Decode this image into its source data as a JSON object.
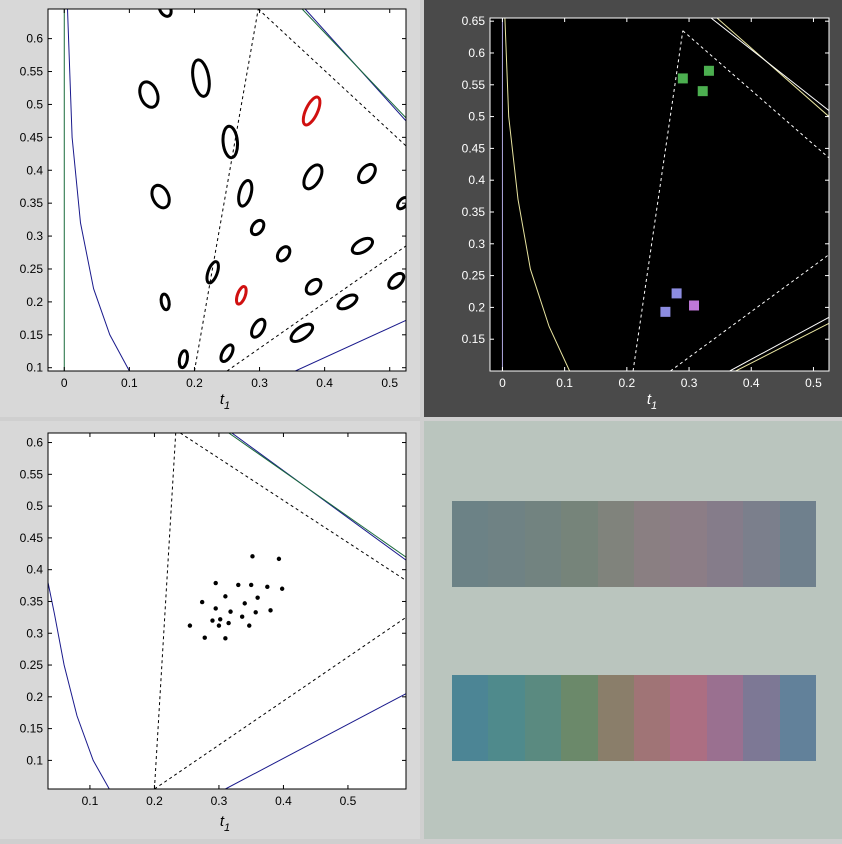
{
  "chart_data": [
    {
      "type": "scatter",
      "panel": "top-left",
      "xlabel": "t",
      "xlabel_sub": "1",
      "xlim": [
        -0.025,
        0.525
      ],
      "ylim": [
        0.095,
        0.645
      ],
      "xticks": [
        0,
        0.1,
        0.2,
        0.3,
        0.4,
        0.5
      ],
      "xtick_labels": [
        "0",
        "0.1",
        "0.2",
        "0.3",
        "0.4",
        "0.5"
      ],
      "yticks": [
        0.1,
        0.15,
        0.2,
        0.25,
        0.3,
        0.35,
        0.4,
        0.45,
        0.5,
        0.55,
        0.6
      ],
      "ytick_labels": [
        "0.1",
        "0.15",
        "0.2",
        "0.25",
        "0.3",
        "0.35",
        "0.4",
        "0.45",
        "0.5",
        "0.55",
        "0.6"
      ],
      "background": "#ffffff",
      "axis_color": "#000000",
      "curve_color": "#1a1a8c",
      "green_line_color": "#1a6b3c",
      "ellipse_color": "#000000",
      "highlight_color": "#d01010",
      "ellipses": [
        {
          "x": 0.155,
          "y": 0.645,
          "rx": 0.008,
          "ry": 0.012,
          "rot": -30
        },
        {
          "x": 0.13,
          "y": 0.515,
          "rx": 0.013,
          "ry": 0.02,
          "rot": -20
        },
        {
          "x": 0.21,
          "y": 0.54,
          "rx": 0.012,
          "ry": 0.028,
          "rot": -10
        },
        {
          "x": 0.38,
          "y": 0.49,
          "rx": 0.009,
          "ry": 0.023,
          "rot": 25,
          "highlight": true
        },
        {
          "x": 0.255,
          "y": 0.443,
          "rx": 0.011,
          "ry": 0.024,
          "rot": -5
        },
        {
          "x": 0.148,
          "y": 0.36,
          "rx": 0.012,
          "ry": 0.018,
          "rot": -25
        },
        {
          "x": 0.278,
          "y": 0.365,
          "rx": 0.009,
          "ry": 0.02,
          "rot": 15
        },
        {
          "x": 0.382,
          "y": 0.39,
          "rx": 0.011,
          "ry": 0.02,
          "rot": 30
        },
        {
          "x": 0.465,
          "y": 0.395,
          "rx": 0.01,
          "ry": 0.016,
          "rot": 40
        },
        {
          "x": 0.52,
          "y": 0.35,
          "rx": 0.006,
          "ry": 0.01,
          "rot": 40
        },
        {
          "x": 0.297,
          "y": 0.313,
          "rx": 0.008,
          "ry": 0.012,
          "rot": 35
        },
        {
          "x": 0.337,
          "y": 0.273,
          "rx": 0.008,
          "ry": 0.012,
          "rot": 35
        },
        {
          "x": 0.458,
          "y": 0.285,
          "rx": 0.009,
          "ry": 0.017,
          "rot": 60
        },
        {
          "x": 0.228,
          "y": 0.245,
          "rx": 0.007,
          "ry": 0.017,
          "rot": 20
        },
        {
          "x": 0.272,
          "y": 0.21,
          "rx": 0.006,
          "ry": 0.014,
          "rot": 20,
          "highlight": true
        },
        {
          "x": 0.383,
          "y": 0.223,
          "rx": 0.009,
          "ry": 0.013,
          "rot": 45
        },
        {
          "x": 0.51,
          "y": 0.232,
          "rx": 0.008,
          "ry": 0.014,
          "rot": 45
        },
        {
          "x": 0.155,
          "y": 0.2,
          "rx": 0.006,
          "ry": 0.012,
          "rot": -10
        },
        {
          "x": 0.435,
          "y": 0.2,
          "rx": 0.008,
          "ry": 0.016,
          "rot": 60
        },
        {
          "x": 0.298,
          "y": 0.16,
          "rx": 0.008,
          "ry": 0.015,
          "rot": 30
        },
        {
          "x": 0.365,
          "y": 0.153,
          "rx": 0.009,
          "ry": 0.019,
          "rot": 55
        },
        {
          "x": 0.183,
          "y": 0.113,
          "rx": 0.006,
          "ry": 0.013,
          "rot": 10
        },
        {
          "x": 0.25,
          "y": 0.122,
          "rx": 0.007,
          "ry": 0.014,
          "rot": 30
        }
      ],
      "curve": [
        [
          0.1,
          0.095
        ],
        [
          0.07,
          0.15
        ],
        [
          0.045,
          0.22
        ],
        [
          0.025,
          0.32
        ],
        [
          0.012,
          0.45
        ],
        [
          0.005,
          0.645
        ]
      ],
      "vertical_line_x": 0,
      "triangle": [
        [
          0.2,
          0.095
        ],
        [
          0.298,
          0.64
        ],
        [
          0.525,
          0.437
        ],
        [
          0.525,
          0.285
        ],
        [
          0.22,
          0.095
        ]
      ],
      "dashed_lines": [
        [
          [
            0.2,
            0.095
          ],
          [
            0.298,
            0.645
          ]
        ],
        [
          [
            0.298,
            0.645
          ],
          [
            0.525,
            0.437
          ]
        ],
        [
          [
            0.25,
            0.095
          ],
          [
            0.525,
            0.285
          ]
        ]
      ],
      "solid_lines": [
        [
          [
            0.37,
            0.645
          ],
          [
            0.525,
            0.475
          ]
        ],
        [
          [
            0.355,
            0.095
          ],
          [
            0.525,
            0.172
          ]
        ]
      ]
    },
    {
      "type": "scatter",
      "panel": "top-right",
      "xlabel": "t",
      "xlabel_sub": "1",
      "xlim": [
        -0.02,
        0.525
      ],
      "ylim": [
        0.1,
        0.655
      ],
      "xticks": [
        0,
        0.1,
        0.2,
        0.3,
        0.4,
        0.5
      ],
      "xtick_labels": [
        "0",
        "0.1",
        "0.2",
        "0.3",
        "0.4",
        "0.5"
      ],
      "yticks": [
        0.15,
        0.2,
        0.25,
        0.3,
        0.35,
        0.4,
        0.45,
        0.5,
        0.55,
        0.6,
        0.65
      ],
      "ytick_labels": [
        "0.15",
        "0.2",
        "0.25",
        "0.3",
        "0.35",
        "0.4",
        "0.45",
        "0.5",
        "0.55",
        "0.6",
        "0.65"
      ],
      "background": "#000000",
      "axis_color": "#ffffff",
      "text_color": "#ffffff",
      "frame_color": "#4a4a4a",
      "curve_color": "#e8e4a0",
      "squares": [
        {
          "x": 0.29,
          "y": 0.56,
          "color": "#4caf50"
        },
        {
          "x": 0.332,
          "y": 0.572,
          "color": "#4caf50"
        },
        {
          "x": 0.322,
          "y": 0.54,
          "color": "#4caf50"
        },
        {
          "x": 0.28,
          "y": 0.222,
          "color": "#8c8ce0"
        },
        {
          "x": 0.262,
          "y": 0.193,
          "color": "#8c8ce0"
        },
        {
          "x": 0.308,
          "y": 0.203,
          "color": "#c078d8"
        }
      ],
      "curve": [
        [
          0.108,
          0.1
        ],
        [
          0.075,
          0.17
        ],
        [
          0.045,
          0.26
        ],
        [
          0.025,
          0.37
        ],
        [
          0.01,
          0.5
        ],
        [
          0.004,
          0.655
        ]
      ],
      "vertical_line_x": 0,
      "dashed_lines": [
        [
          [
            0.21,
            0.1
          ],
          [
            0.29,
            0.635
          ]
        ],
        [
          [
            0.29,
            0.635
          ],
          [
            0.525,
            0.435
          ]
        ],
        [
          [
            0.27,
            0.1
          ],
          [
            0.525,
            0.283
          ]
        ]
      ],
      "solid_lines": [
        [
          [
            0.345,
            0.655
          ],
          [
            0.525,
            0.5
          ]
        ],
        [
          [
            0.375,
            0.1
          ],
          [
            0.525,
            0.175
          ]
        ]
      ]
    },
    {
      "type": "scatter",
      "panel": "bottom-left",
      "xlabel": "t",
      "xlabel_sub": "1",
      "xlim": [
        0.035,
        0.59
      ],
      "ylim": [
        0.055,
        0.615
      ],
      "xticks": [
        0.1,
        0.2,
        0.3,
        0.4,
        0.5
      ],
      "xtick_labels": [
        "0.1",
        "0.2",
        "0.3",
        "0.4",
        "0.5"
      ],
      "yticks": [
        0.1,
        0.15,
        0.2,
        0.25,
        0.3,
        0.35,
        0.4,
        0.45,
        0.5,
        0.55,
        0.6
      ],
      "ytick_labels": [
        "0.1",
        "0.15",
        "0.2",
        "0.25",
        "0.3",
        "0.35",
        "0.4",
        "0.45",
        "0.5",
        "0.55",
        "0.6"
      ],
      "background": "#ffffff",
      "axis_color": "#000000",
      "curve_color": "#1a1a8c",
      "point_color": "#000000",
      "points": [
        {
          "x": 0.352,
          "y": 0.421
        },
        {
          "x": 0.393,
          "y": 0.417
        },
        {
          "x": 0.295,
          "y": 0.379
        },
        {
          "x": 0.33,
          "y": 0.376
        },
        {
          "x": 0.35,
          "y": 0.376
        },
        {
          "x": 0.375,
          "y": 0.373
        },
        {
          "x": 0.398,
          "y": 0.37
        },
        {
          "x": 0.31,
          "y": 0.358
        },
        {
          "x": 0.36,
          "y": 0.356
        },
        {
          "x": 0.274,
          "y": 0.349
        },
        {
          "x": 0.34,
          "y": 0.347
        },
        {
          "x": 0.295,
          "y": 0.339
        },
        {
          "x": 0.38,
          "y": 0.336
        },
        {
          "x": 0.318,
          "y": 0.334
        },
        {
          "x": 0.357,
          "y": 0.333
        },
        {
          "x": 0.336,
          "y": 0.326
        },
        {
          "x": 0.302,
          "y": 0.322
        },
        {
          "x": 0.29,
          "y": 0.32
        },
        {
          "x": 0.315,
          "y": 0.316
        },
        {
          "x": 0.255,
          "y": 0.312
        },
        {
          "x": 0.3,
          "y": 0.312
        },
        {
          "x": 0.347,
          "y": 0.312
        },
        {
          "x": 0.278,
          "y": 0.293
        },
        {
          "x": 0.31,
          "y": 0.292
        }
      ],
      "curve": [
        [
          0.13,
          0.055
        ],
        [
          0.105,
          0.1
        ],
        [
          0.08,
          0.17
        ],
        [
          0.06,
          0.25
        ],
        [
          0.045,
          0.33
        ],
        [
          0.035,
          0.38
        ]
      ],
      "dashed_lines": [
        [
          [
            0.2,
            0.055
          ],
          [
            0.233,
            0.615
          ]
        ],
        [
          [
            0.24,
            0.615
          ],
          [
            0.59,
            0.383
          ]
        ],
        [
          [
            0.2,
            0.055
          ],
          [
            0.59,
            0.325
          ]
        ]
      ],
      "solid_lines": [
        [
          [
            0.32,
            0.615
          ],
          [
            0.59,
            0.415
          ]
        ],
        [
          [
            0.31,
            0.055
          ],
          [
            0.59,
            0.205
          ]
        ]
      ]
    }
  ],
  "swatches": {
    "background": "#bac5be",
    "rows": [
      {
        "colors": [
          "#6c8286",
          "#6f8284",
          "#728380",
          "#76847a",
          "#80837c",
          "#8a7f82",
          "#8c7d86",
          "#857c8a",
          "#7b7f8c",
          "#6f808d"
        ]
      },
      {
        "colors": [
          "#4c8595",
          "#4f8a8c",
          "#5a8a80",
          "#6b896a",
          "#8a7e6a",
          "#a07476",
          "#ac6e82",
          "#9a7090",
          "#7d7895",
          "#62819a"
        ]
      }
    ]
  }
}
